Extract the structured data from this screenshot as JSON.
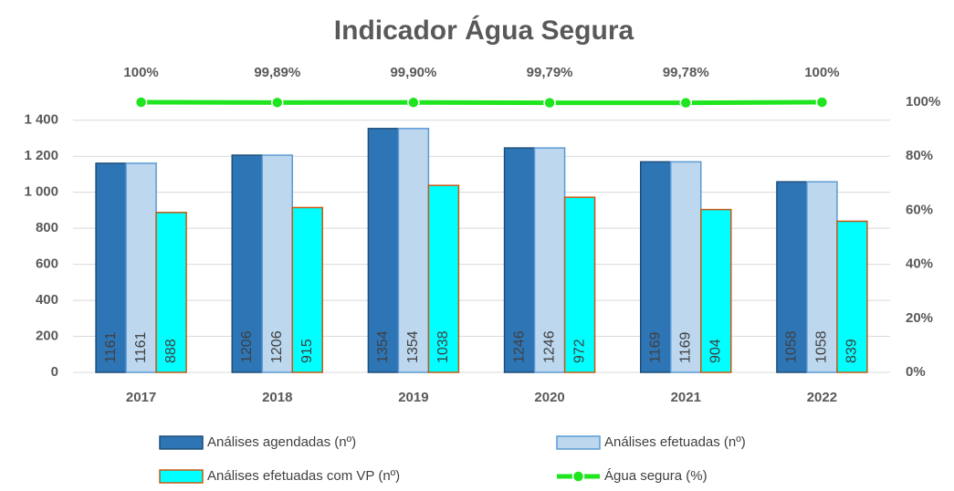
{
  "chart_data": {
    "type": "bar_line",
    "title": "Indicador Água Segura",
    "categories": [
      "2017",
      "2018",
      "2019",
      "2020",
      "2021",
      "2022"
    ],
    "series": [
      {
        "name": "Análises agendadas (nº)",
        "color": "#2e75b6",
        "values": [
          1161,
          1206,
          1354,
          1246,
          1169,
          1058
        ]
      },
      {
        "name": "Análises efetuadas (nº)",
        "color": "#bdd7ee",
        "values": [
          1161,
          1206,
          1354,
          1246,
          1169,
          1058
        ]
      },
      {
        "name": "Análises efetuadas com VP (nº)",
        "color": "#00ffff",
        "values": [
          888,
          915,
          1038,
          972,
          904,
          839
        ]
      },
      {
        "name": "Água segura (%)",
        "color": "#1ee51e",
        "axis": "y2",
        "values": [
          100,
          99.89,
          99.9,
          99.79,
          99.78,
          100
        ],
        "value_labels": [
          "100%",
          "99,89%",
          "99,90%",
          "99,79%",
          "99,78%",
          "100%"
        ]
      }
    ],
    "ylim": [
      0,
      1500
    ],
    "yticks": [
      0,
      200,
      400,
      600,
      800,
      {
        "value": 1000,
        "label": "1 000"
      },
      {
        "value": 1200,
        "label": "1 200"
      },
      {
        "value": 1400,
        "label": "1 400"
      }
    ],
    "y2lim": [
      0,
      100
    ],
    "y2ticks": [
      {
        "value": 0,
        "label": "0%"
      },
      {
        "value": 20,
        "label": "20%"
      },
      {
        "value": 40,
        "label": "40%"
      },
      {
        "value": 60,
        "label": "60%"
      },
      {
        "value": 80,
        "label": "80%"
      },
      {
        "value": 100,
        "label": "100%"
      }
    ],
    "grid": true
  }
}
